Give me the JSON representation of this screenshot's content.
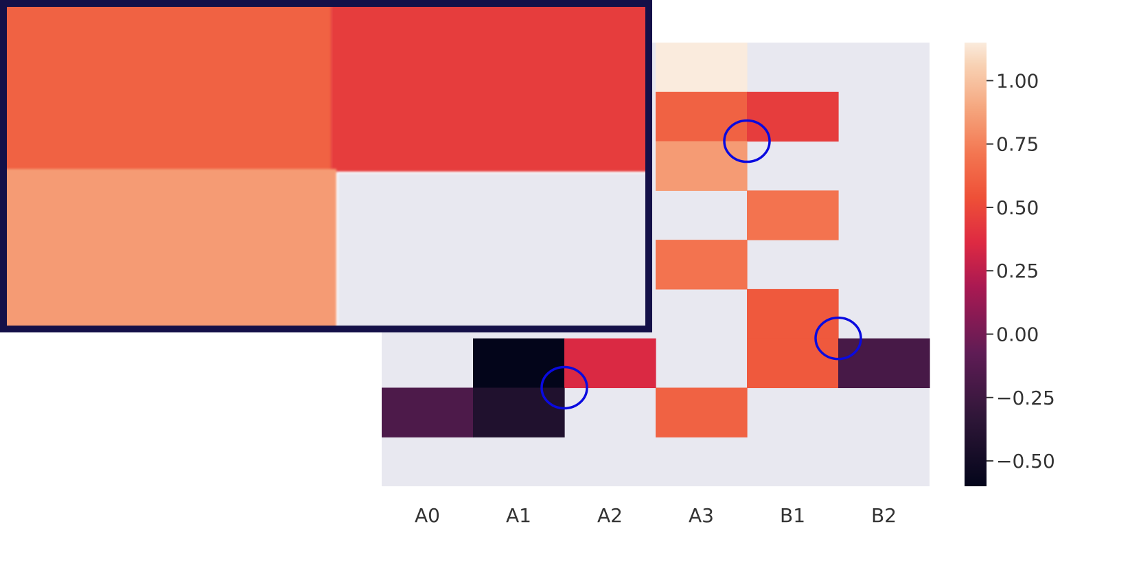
{
  "chart_data": {
    "type": "heatmap",
    "x_categories": [
      "A0",
      "A1",
      "A2",
      "A3",
      "B1",
      "B2"
    ],
    "n_rows": 9,
    "background_color": "#e8e8f0",
    "colorbar": {
      "vmin": -0.6,
      "vmax": 1.15,
      "ticks": [
        1.0,
        0.75,
        0.5,
        0.25,
        0.0,
        -0.25,
        -0.5
      ],
      "tick_labels": [
        "1.00",
        "0.75",
        "0.50",
        "0.25",
        "0.00",
        "−0.25",
        "−0.50"
      ]
    },
    "cells": [
      {
        "row": 0,
        "col": 3,
        "value": 1.15
      },
      {
        "row": 1,
        "col": 3,
        "value": 0.62
      },
      {
        "row": 1,
        "col": 4,
        "value": 0.45
      },
      {
        "row": 2,
        "col": 3,
        "value": 0.85
      },
      {
        "row": 3,
        "col": 4,
        "value": 0.7
      },
      {
        "row": 4,
        "col": 3,
        "value": 0.7
      },
      {
        "row": 5,
        "col": 4,
        "value": 0.58
      },
      {
        "row": 6,
        "col": 1,
        "value": -0.6
      },
      {
        "row": 6,
        "col": 2,
        "value": 0.35
      },
      {
        "row": 6,
        "col": 4,
        "value": 0.58
      },
      {
        "row": 6,
        "col": 5,
        "value": -0.2
      },
      {
        "row": 7,
        "col": 0,
        "value": -0.17
      },
      {
        "row": 7,
        "col": 1,
        "value": -0.42
      },
      {
        "row": 7,
        "col": 3,
        "value": 0.62
      }
    ],
    "highlight_circles_color": "#0a0adf",
    "highlight_circles": [
      {
        "row_edge": 2,
        "col_edge": 4
      },
      {
        "row_edge": 6,
        "col_edge": 5
      },
      {
        "row_edge": 7,
        "col_edge": 2
      }
    ],
    "zoom_inset": {
      "border_color": "#141048",
      "quadrants": [
        {
          "value": 0.62
        },
        {
          "value": 0.45
        },
        {
          "value": 0.85
        },
        {
          "value": null
        }
      ]
    }
  }
}
